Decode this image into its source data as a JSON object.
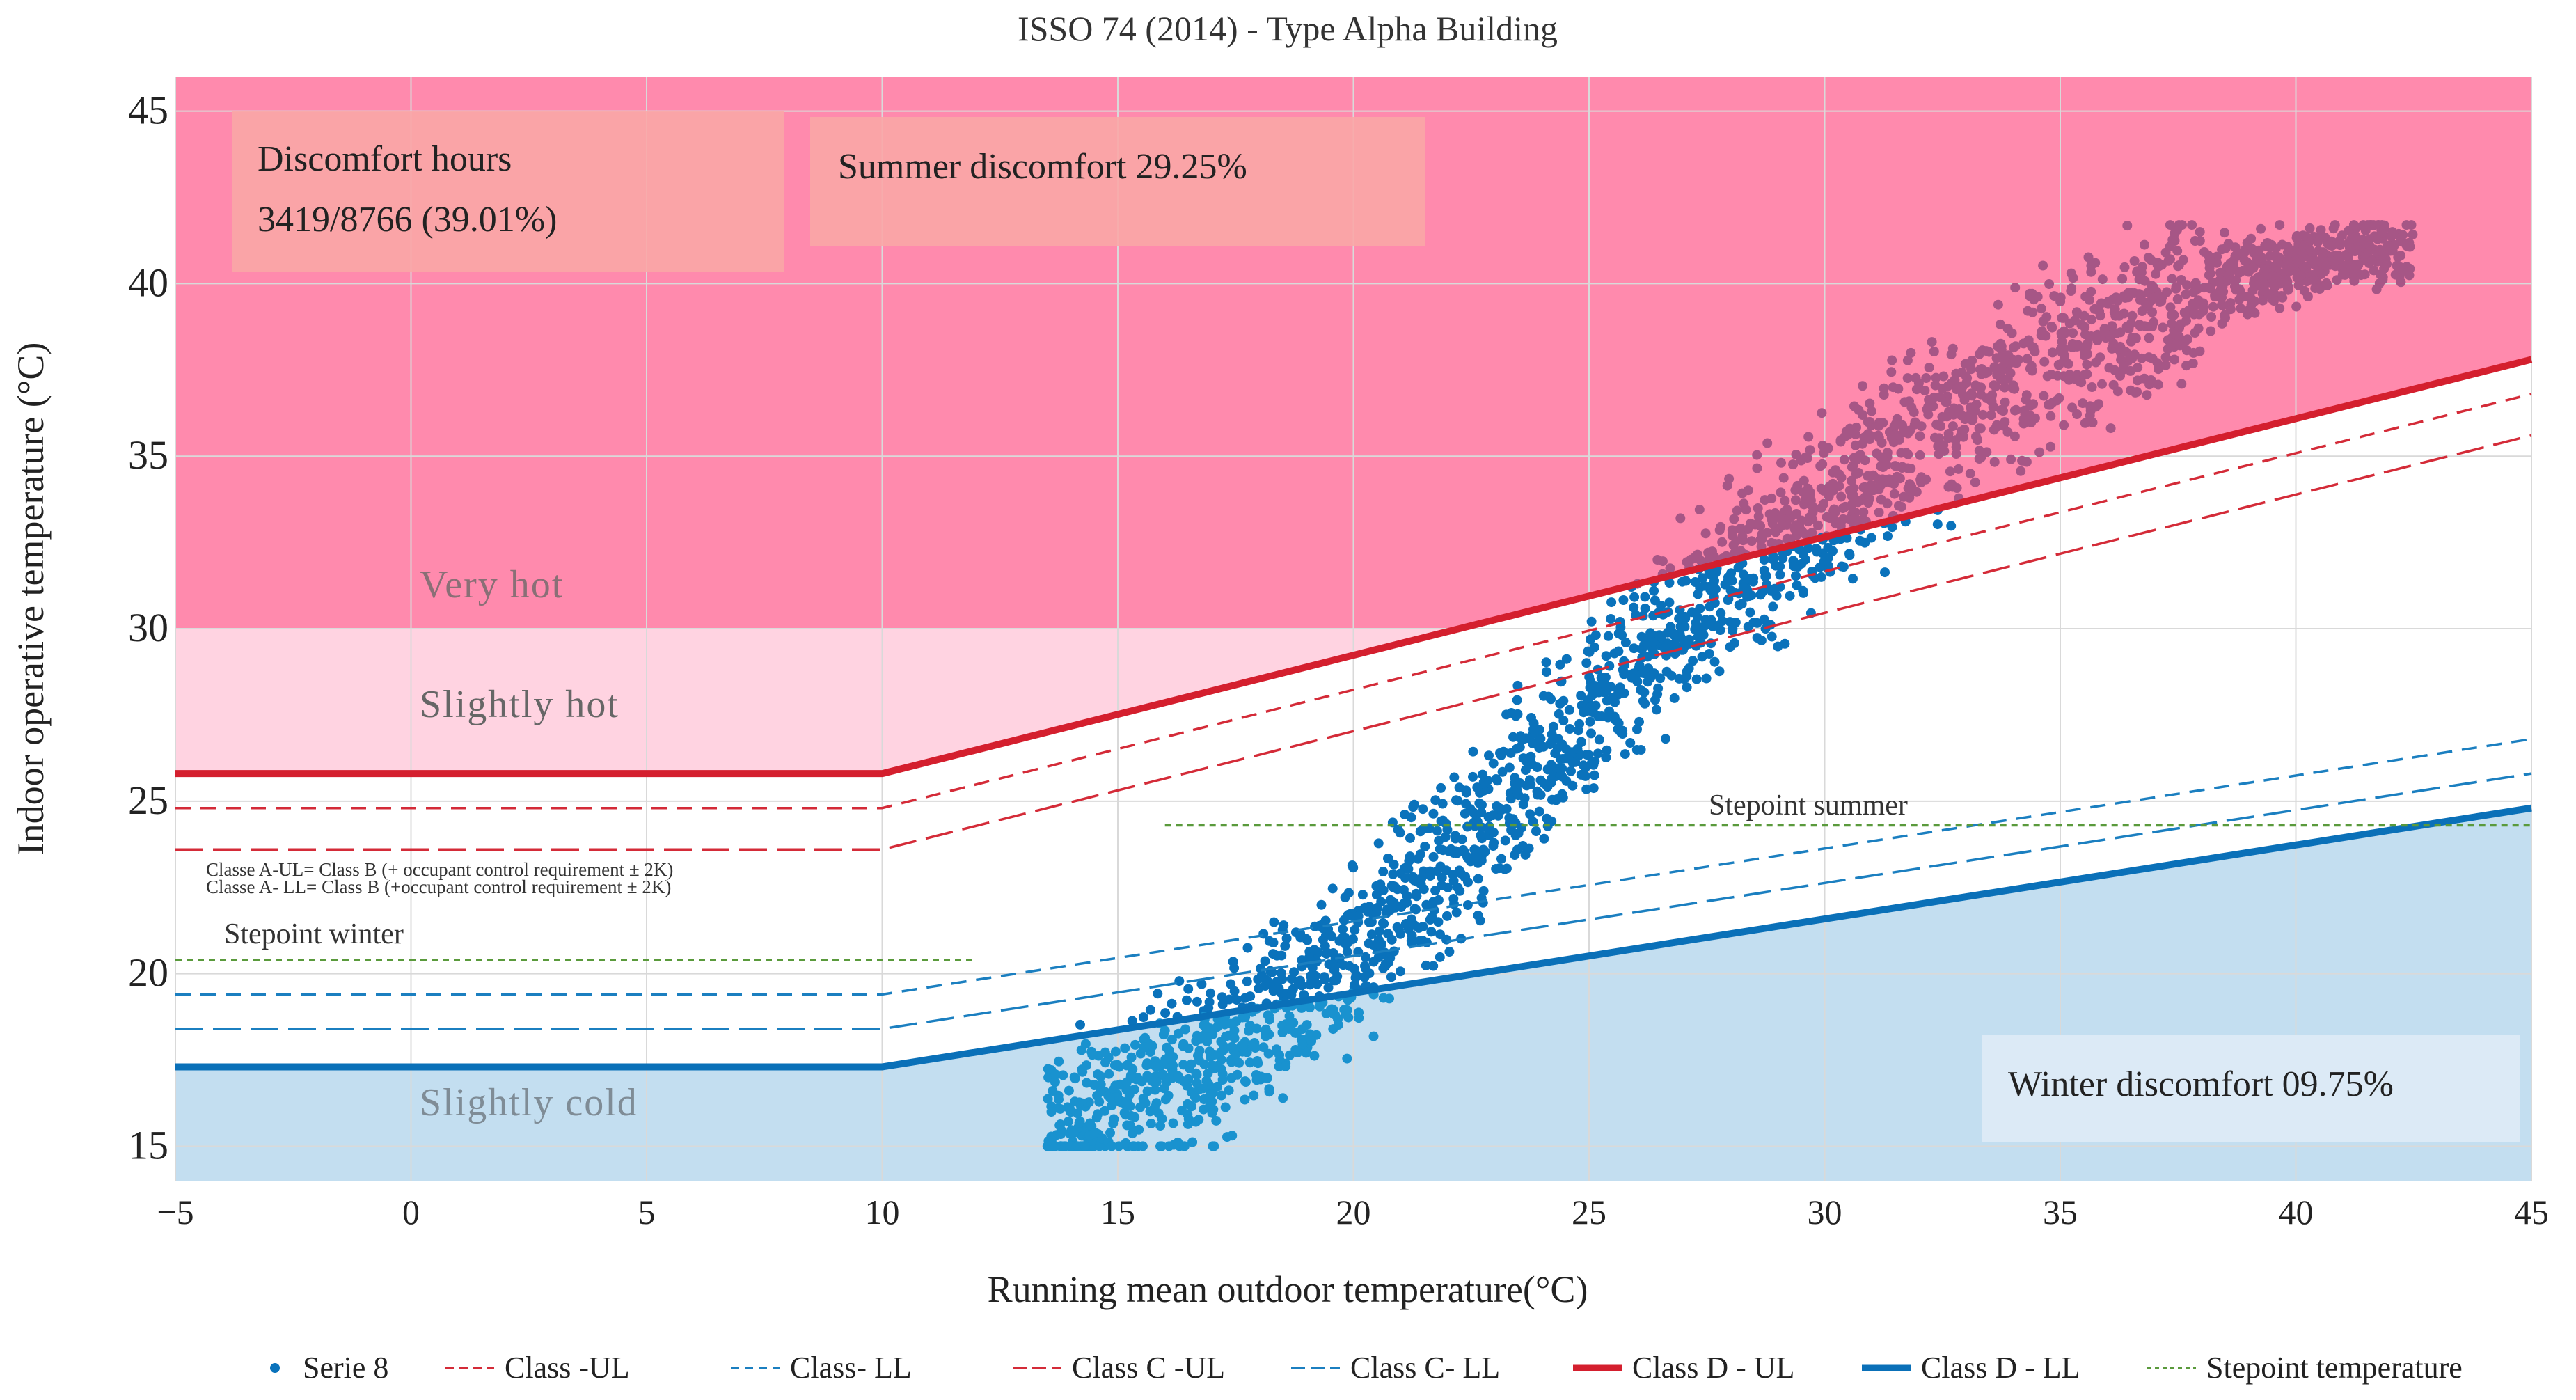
{
  "chart_data": {
    "type": "scatter",
    "title": "ISSO 74 (2014) - Type Alpha Building",
    "xlabel": "Running mean outdoor temperature(°C)",
    "ylabel": "Indoor operative temperature (°C)",
    "xlim": [
      -5,
      45
    ],
    "ylim": [
      14,
      46
    ],
    "xticks": [
      -5,
      0,
      5,
      10,
      15,
      20,
      25,
      30,
      35,
      40,
      45
    ],
    "yticks": [
      15,
      20,
      25,
      30,
      35,
      40,
      45
    ],
    "xtick_labels": [
      "−5",
      "0",
      "5",
      "10",
      "15",
      "20",
      "25",
      "30",
      "35",
      "40",
      "45"
    ],
    "ytick_labels": [
      "15",
      "20",
      "25",
      "30",
      "35",
      "40",
      "45"
    ],
    "grid": true,
    "legend_position": "bottom",
    "zones": [
      {
        "name": "Very hot",
        "y_from": 30,
        "color": "#ff8aad"
      },
      {
        "name": "Slightly hot",
        "y_from": 25.8,
        "y_to": 30,
        "color": "#ffd3e1"
      },
      {
        "name": "Slightly cold",
        "y_to": 17.3,
        "color": "#c3def0"
      }
    ],
    "series": [
      {
        "name": "Class -UL",
        "style": "dash-short",
        "color": "#d42b38",
        "points": [
          [
            -5,
            24.8
          ],
          [
            10,
            24.8
          ],
          [
            45,
            36.8
          ]
        ]
      },
      {
        "name": "Class- LL",
        "style": "dash-short",
        "color": "#1b7fc0",
        "points": [
          [
            -5,
            19.4
          ],
          [
            10,
            19.4
          ],
          [
            45,
            26.8
          ]
        ]
      },
      {
        "name": "Class C -UL",
        "style": "dash-long",
        "color": "#d42b38",
        "points": [
          [
            -5,
            23.6
          ],
          [
            10,
            23.6
          ],
          [
            45,
            35.6
          ]
        ]
      },
      {
        "name": "Class C- LL",
        "style": "dash-long",
        "color": "#1b7fc0",
        "points": [
          [
            -5,
            18.4
          ],
          [
            10,
            18.4
          ],
          [
            45,
            25.8
          ]
        ]
      },
      {
        "name": "Class D - UL",
        "style": "solid",
        "color": "#d41f2e",
        "points": [
          [
            -5,
            25.8
          ],
          [
            10,
            25.8
          ],
          [
            45,
            37.8
          ]
        ]
      },
      {
        "name": "Class D - LL",
        "style": "solid",
        "color": "#0a70b8",
        "points": [
          [
            -5,
            17.3
          ],
          [
            10,
            17.3
          ],
          [
            45,
            24.8
          ]
        ]
      },
      {
        "name": "Stepoint temperature",
        "style": "dotted",
        "color": "#5a9a3c",
        "segments": [
          [
            [
              -5,
              20.4
            ],
            [
              12,
              20.4
            ]
          ],
          [
            [
              16,
              24.3
            ],
            [
              45,
              24.3
            ]
          ]
        ]
      }
    ],
    "scatter": {
      "name": "Serie 8",
      "color": "#0a72bb",
      "band_center": [
        [
          14,
          15.5
        ],
        [
          17,
          17.5
        ],
        [
          20,
          20.5
        ],
        [
          23,
          24.5
        ],
        [
          26,
          29
        ],
        [
          29,
          32.5
        ],
        [
          32,
          35.5
        ],
        [
          35,
          38
        ],
        [
          38,
          40
        ],
        [
          41.5,
          41
        ]
      ],
      "x_range": [
        13.5,
        42.5
      ],
      "y_range": [
        15,
        41.7
      ]
    },
    "annotations": {
      "discomfort_hours_label": "Discomfort hours",
      "discomfort_hours_value": "3419/8766 (39.01%)",
      "summer_discomfort": "Summer discomfort 29.25%",
      "winter_discomfort": "Winter discomfort 09.75%",
      "very_hot": "Very hot",
      "slightly_hot": "Slightly hot",
      "slightly_cold": "Slightly cold",
      "class_a_ul_note": "Classe A-UL= Class B (+ occupant control requirement ± 2K)",
      "class_a_ll_note": "Classe A- LL= Class B (+occupant control requirement ± 2K)",
      "setpoint_winter": "Stepoint winter",
      "setpoint_summer": "Stepoint summer"
    }
  }
}
